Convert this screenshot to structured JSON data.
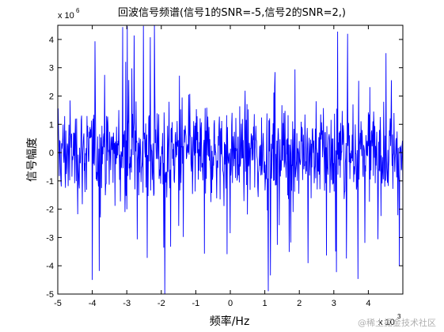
{
  "chart_data": {
    "type": "line",
    "title": "回波信号频谱(信号1的SNR=-5,信号2的SNR=2,)",
    "xlabel": "频率/Hz",
    "ylabel": "信号幅度",
    "x_multiplier": {
      "base": "x 10",
      "power": "3"
    },
    "y_multiplier": {
      "base": "x 10",
      "power": "6"
    },
    "xlim": [
      -5,
      5
    ],
    "ylim": [
      -5,
      4.5
    ],
    "x_ticks": [
      "-5",
      "-4",
      "-3",
      "-2",
      "-1",
      "0",
      "1",
      "2",
      "3",
      "4"
    ],
    "y_ticks": [
      "4",
      "3",
      "2",
      "1",
      "0",
      "-1",
      "-2",
      "-3",
      "-4",
      "-5"
    ],
    "series": [
      {
        "color": "#0000ff",
        "description_points": 900,
        "typical_envelope": [
          -2.2,
          2.2
        ],
        "peak_max": 4.5,
        "peak_min": -5.0
      }
    ],
    "grid": false
  },
  "watermark": "@稀土掘金技术社区"
}
